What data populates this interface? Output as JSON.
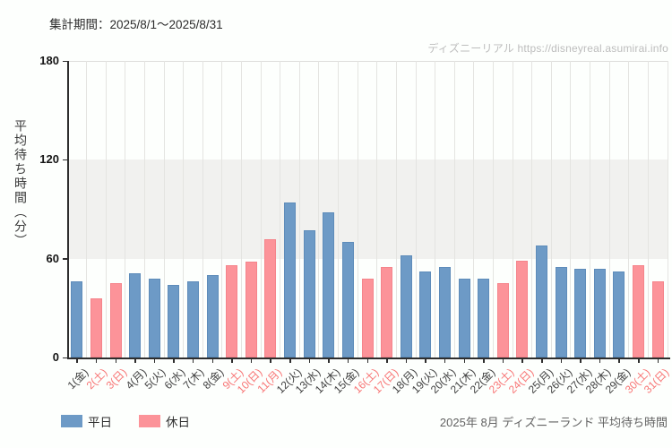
{
  "chart_data": {
    "type": "bar",
    "title": "集計期間：2025/8/1～2025/8/31",
    "watermark": "ディズニーリアル https://disneyreal.asumirai.info",
    "footer": "2025年 8月 ディズニーランド 平均待ち時間",
    "ylabel": "平均待ち時間（分）",
    "ylim": [
      0,
      180
    ],
    "yticks": [
      0,
      60,
      120,
      180
    ],
    "shaded_band": [
      60,
      120
    ],
    "grid": "vertical-per-day",
    "legend_position": "bottom-left",
    "legend": [
      {
        "name": "平日",
        "key": "weekday"
      },
      {
        "name": "休日",
        "key": "holiday"
      }
    ],
    "colors": {
      "weekday": "#6d9ac6",
      "weekday_border": "#5e8cba",
      "holiday": "#fc9399",
      "holiday_border": "#f5848b",
      "weekday_label": "#3f3f3f",
      "holiday_label": "#f87575"
    },
    "days": [
      {
        "label": "1(金)",
        "value": 46,
        "type": "weekday"
      },
      {
        "label": "2(土)",
        "value": 36,
        "type": "holiday"
      },
      {
        "label": "3(日)",
        "value": 45,
        "type": "holiday"
      },
      {
        "label": "4(月)",
        "value": 51,
        "type": "weekday"
      },
      {
        "label": "5(火)",
        "value": 48,
        "type": "weekday"
      },
      {
        "label": "6(水)",
        "value": 44,
        "type": "weekday"
      },
      {
        "label": "7(木)",
        "value": 46,
        "type": "weekday"
      },
      {
        "label": "8(金)",
        "value": 50,
        "type": "weekday"
      },
      {
        "label": "9(土)",
        "value": 56,
        "type": "holiday"
      },
      {
        "label": "10(日)",
        "value": 58,
        "type": "holiday"
      },
      {
        "label": "11(月)",
        "value": 72,
        "type": "holiday"
      },
      {
        "label": "12(火)",
        "value": 94,
        "type": "weekday"
      },
      {
        "label": "13(水)",
        "value": 77,
        "type": "weekday"
      },
      {
        "label": "14(木)",
        "value": 88,
        "type": "weekday"
      },
      {
        "label": "15(金)",
        "value": 70,
        "type": "weekday"
      },
      {
        "label": "16(土)",
        "value": 48,
        "type": "holiday"
      },
      {
        "label": "17(日)",
        "value": 55,
        "type": "holiday"
      },
      {
        "label": "18(月)",
        "value": 62,
        "type": "weekday"
      },
      {
        "label": "19(火)",
        "value": 52,
        "type": "weekday"
      },
      {
        "label": "20(水)",
        "value": 55,
        "type": "weekday"
      },
      {
        "label": "21(木)",
        "value": 48,
        "type": "weekday"
      },
      {
        "label": "22(金)",
        "value": 48,
        "type": "weekday"
      },
      {
        "label": "23(土)",
        "value": 45,
        "type": "holiday"
      },
      {
        "label": "24(日)",
        "value": 59,
        "type": "holiday"
      },
      {
        "label": "25(月)",
        "value": 68,
        "type": "weekday"
      },
      {
        "label": "26(火)",
        "value": 55,
        "type": "weekday"
      },
      {
        "label": "27(水)",
        "value": 54,
        "type": "weekday"
      },
      {
        "label": "28(木)",
        "value": 54,
        "type": "weekday"
      },
      {
        "label": "29(金)",
        "value": 52,
        "type": "weekday"
      },
      {
        "label": "30(土)",
        "value": 56,
        "type": "holiday"
      },
      {
        "label": "31(日)",
        "value": 46,
        "type": "holiday"
      }
    ]
  }
}
